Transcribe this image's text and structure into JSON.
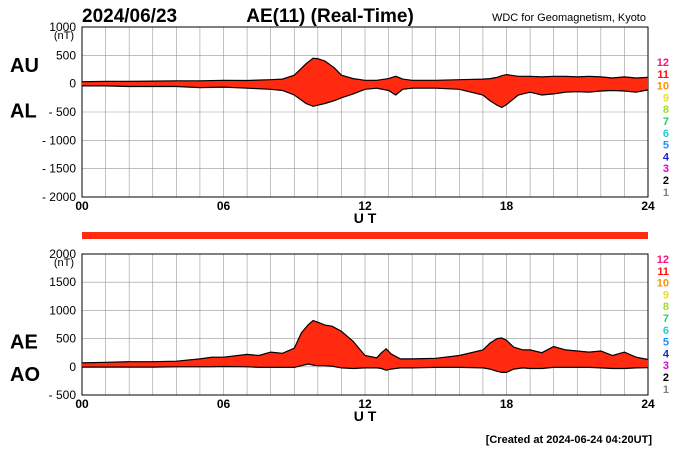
{
  "header": {
    "date": "2024/06/23",
    "title": "AE(11) (Real-Time)",
    "source": "WDC for Geomagnetism, Kyoto"
  },
  "footer": {
    "created": "[Created at 2024-06-24 04:20UT]"
  },
  "colors": {
    "fill": "#ff2a10",
    "line": "#000000",
    "grid": "#999999",
    "level_colors": [
      "#c8c8c8",
      "#808080",
      "#000000",
      "#e000e0",
      "#2020d0",
      "#2090ff",
      "#20d0d0",
      "#20d060",
      "#a0e020",
      "#e8e020",
      "#ff9000",
      "#ff1010",
      "#ff1080"
    ]
  },
  "level_scale": [
    "12",
    "11",
    "10",
    "9",
    "8",
    "7",
    "6",
    "5",
    "4",
    "3",
    "2",
    "1"
  ],
  "chart_data": [
    {
      "type": "area",
      "panel": "AU/AL",
      "series_labels": [
        "AU",
        "AL"
      ],
      "unit_label": "(nT)",
      "xlabel": "U T",
      "x_ticks": [
        "00",
        "06",
        "12",
        "18",
        "24"
      ],
      "xlim": [
        0,
        24
      ],
      "y_ticks": [
        "1000",
        "500",
        "0",
        "- 500",
        "- 1000",
        "- 1500",
        "- 2000"
      ],
      "ylim": [
        -2000,
        1000
      ],
      "grid": true,
      "x": [
        0,
        1,
        2,
        3,
        4,
        5,
        6,
        7,
        8,
        8.5,
        9,
        9.5,
        9.8,
        10,
        10.3,
        10.7,
        11,
        11.5,
        12,
        12.5,
        13,
        13.3,
        13.6,
        14,
        15,
        16,
        17,
        17.3,
        17.6,
        17.8,
        18,
        18.5,
        19,
        19.5,
        20,
        20.5,
        21,
        21.5,
        22,
        22.5,
        23,
        23.5,
        24
      ],
      "series": [
        {
          "name": "AU",
          "values": [
            35,
            40,
            40,
            45,
            50,
            50,
            60,
            55,
            70,
            80,
            150,
            350,
            450,
            440,
            400,
            280,
            150,
            90,
            60,
            60,
            90,
            130,
            80,
            60,
            60,
            70,
            80,
            90,
            110,
            140,
            160,
            130,
            130,
            120,
            130,
            130,
            120,
            130,
            120,
            100,
            120,
            100,
            110
          ]
        },
        {
          "name": "AL",
          "values": [
            -40,
            -40,
            -50,
            -50,
            -50,
            -70,
            -60,
            -80,
            -100,
            -120,
            -200,
            -350,
            -400,
            -380,
            -350,
            -300,
            -250,
            -180,
            -100,
            -80,
            -120,
            -200,
            -100,
            -80,
            -80,
            -100,
            -200,
            -300,
            -380,
            -420,
            -370,
            -200,
            -150,
            -200,
            -180,
            -150,
            -140,
            -150,
            -130,
            -120,
            -130,
            -150,
            -110
          ]
        }
      ]
    },
    {
      "type": "area",
      "panel": "AE/AO",
      "series_labels": [
        "AE",
        "AO"
      ],
      "unit_label": "(nT)",
      "xlabel": "U T",
      "x_ticks": [
        "00",
        "06",
        "12",
        "18",
        "24"
      ],
      "xlim": [
        0,
        24
      ],
      "y_ticks": [
        "2000",
        "1500",
        "1000",
        "500",
        "0",
        "- 500"
      ],
      "ylim": [
        -500,
        2000
      ],
      "grid": true,
      "x": [
        0,
        1,
        2,
        3,
        4,
        5,
        5.5,
        6,
        7,
        7.5,
        8,
        8.5,
        9,
        9.3,
        9.6,
        9.8,
        10,
        10.3,
        10.6,
        11,
        11.5,
        12,
        12.5,
        12.7,
        12.9,
        13.1,
        13.5,
        14,
        15,
        16,
        17,
        17.3,
        17.6,
        17.8,
        18,
        18.3,
        18.7,
        19,
        19.5,
        20,
        20.5,
        21,
        21.5,
        22,
        22.5,
        23,
        23.5,
        24
      ],
      "series": [
        {
          "name": "AE",
          "values": [
            70,
            80,
            90,
            90,
            100,
            140,
            170,
            170,
            220,
            200,
            260,
            240,
            330,
            600,
            750,
            820,
            790,
            740,
            720,
            630,
            450,
            200,
            160,
            250,
            320,
            230,
            140,
            140,
            150,
            200,
            300,
            420,
            500,
            510,
            470,
            350,
            300,
            300,
            250,
            360,
            300,
            280,
            260,
            280,
            200,
            260,
            170,
            130
          ]
        },
        {
          "name": "AO",
          "values": [
            -5,
            -5,
            -5,
            -5,
            0,
            0,
            0,
            5,
            0,
            -10,
            -10,
            -10,
            -10,
            20,
            50,
            30,
            20,
            20,
            10,
            -20,
            -30,
            -20,
            -20,
            -30,
            -60,
            -40,
            -20,
            -20,
            -10,
            -10,
            -20,
            -40,
            -80,
            -100,
            -100,
            -40,
            -20,
            -30,
            -30,
            -10,
            -10,
            -10,
            -10,
            -20,
            -30,
            -30,
            -20,
            -15
          ]
        }
      ]
    }
  ]
}
